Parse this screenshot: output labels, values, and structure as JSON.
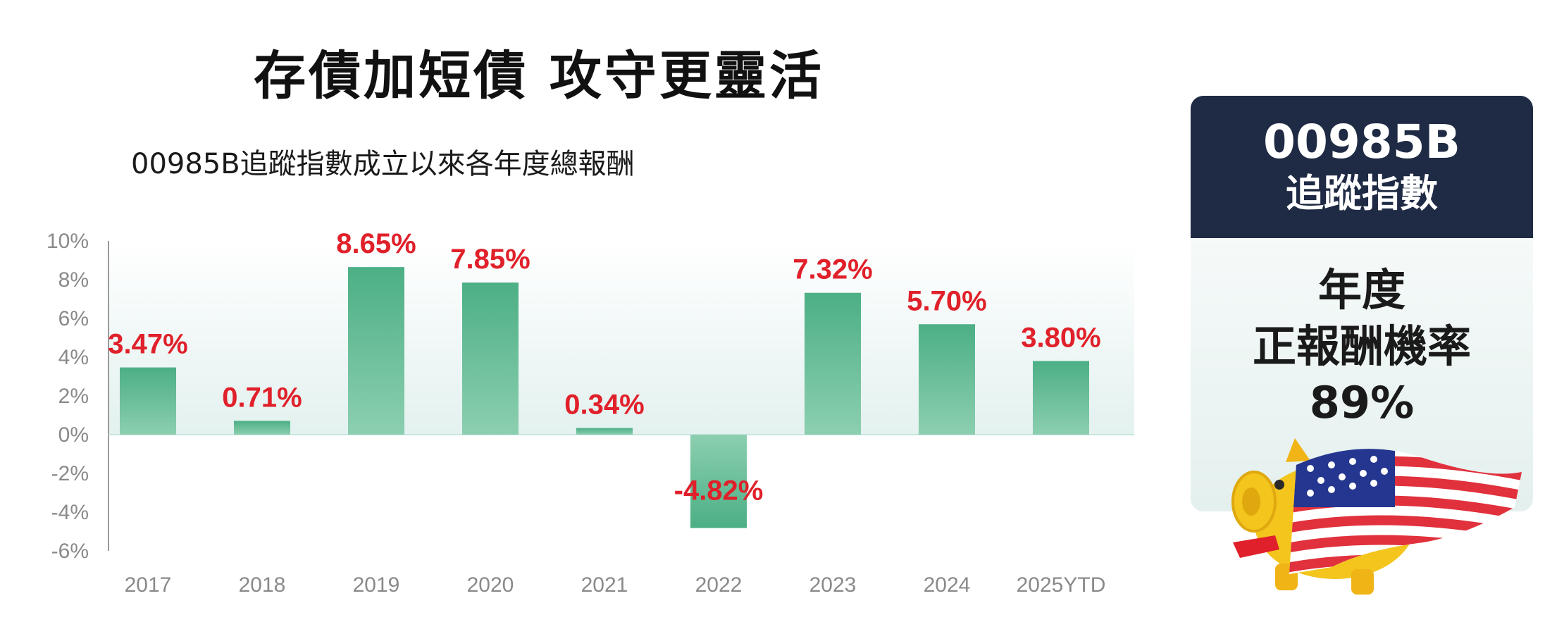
{
  "title": "存債加短債  攻守更靈活",
  "side_card": {
    "code": "00985B",
    "name": "追蹤指數",
    "metric_line1": "年度",
    "metric_line2": "正報酬機率",
    "metric_value": "89%",
    "header_color": "#1f2a44"
  },
  "icons": [
    "gold-piggy-bank-icon",
    "us-flag-icon"
  ],
  "chart_data": {
    "type": "bar",
    "title": "00985B追蹤指數成立以來各年度總報酬",
    "categories": [
      "2017",
      "2018",
      "2019",
      "2020",
      "2021",
      "2022",
      "2023",
      "2024",
      "2025YTD"
    ],
    "values": [
      3.47,
      0.71,
      8.65,
      7.85,
      0.34,
      -4.82,
      7.32,
      5.7,
      3.8
    ],
    "data_labels": [
      "3.47%",
      "0.71%",
      "8.65%",
      "7.85%",
      "0.34%",
      "-4.82%",
      "7.32%",
      "5.70%",
      "3.80%"
    ],
    "ylim": [
      -6,
      10
    ],
    "yticks": [
      10,
      8,
      6,
      4,
      2,
      0,
      -2,
      -4,
      -6
    ],
    "ytick_labels": [
      "10%",
      "8%",
      "6%",
      "4%",
      "2%",
      "0%",
      "-2%",
      "-4%",
      "-6%"
    ],
    "xlabel": "",
    "ylabel": "",
    "grid": false,
    "bar_color": "#4caf85",
    "label_color": "#e0202a"
  }
}
